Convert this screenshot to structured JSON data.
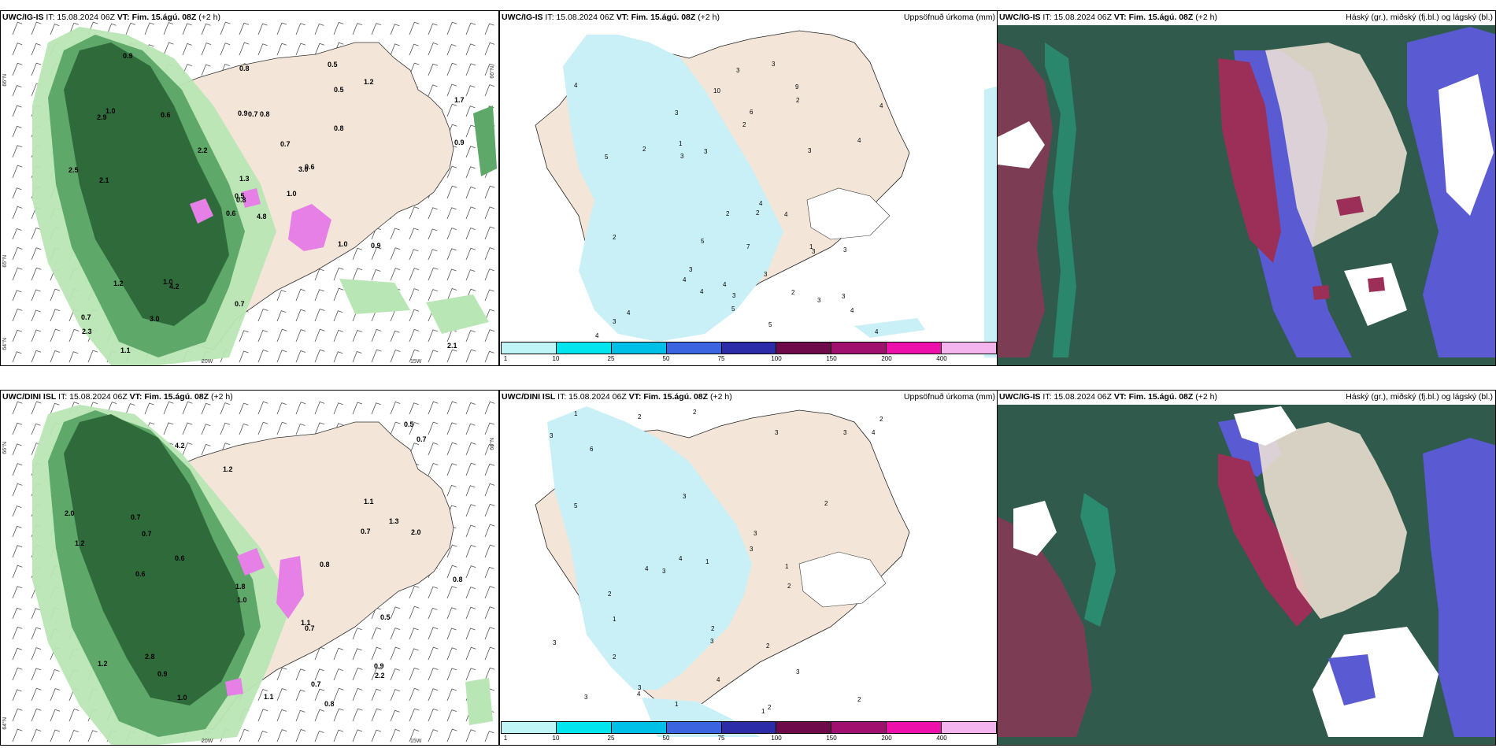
{
  "colors": {
    "land": "#f3e6d8",
    "sea_dark_green": "#2f5a4c",
    "precip_light": "#c9f0f6",
    "green_dark": "#2f6b3a",
    "green_mid": "#5ea86a",
    "green_light": "#b9e6b5",
    "magenta": "#e680e6",
    "blue_cloud": "#5a5ad2",
    "red_cloud": "#9c2f57",
    "teal_edge": "#28b48c"
  },
  "panels": {
    "top_left": {
      "model": "UWC/IG-IS",
      "it": "IT: 15.08.2024 06Z",
      "vt": "VT: Fim. 15.ágú. 08Z",
      "lead": "(+2 h)",
      "right_title": ""
    },
    "top_mid": {
      "model": "UWC/IG-IS",
      "it": "IT: 15.08.2024 06Z",
      "vt": "VT: Fim. 15.ágú. 08Z",
      "lead": "(+2 h)",
      "right_title": "Uppsöfnuð úrkoma (mm)"
    },
    "top_right": {
      "model": "UWC/IG-IS",
      "it": "IT: 15.08.2024 06Z",
      "vt": "VT: Fim. 15.ágú. 08Z",
      "lead": "(+2 h)",
      "right_title": "Háský (gr.), miðský (fj.bl.) og lágský (bl.)"
    },
    "bot_left": {
      "model": "UWC/DINI ISL",
      "it": "IT: 15.08.2024 06Z",
      "vt": "VT: Fim. 15.ágú. 08Z",
      "lead": "(+2 h)",
      "right_title": ""
    },
    "bot_mid": {
      "model": "UWC/DINI ISL",
      "it": "IT: 15.08.2024 06Z",
      "vt": "VT: Fim. 15.ágú. 08Z",
      "lead": "(+2 h)",
      "right_title": "Uppsöfnuð úrkoma (mm)"
    },
    "bot_right": {
      "model": "UWC/IG-IS",
      "it": "IT: 15.08.2024 06Z",
      "vt": "VT: Fim. 15.ágú. 08Z",
      "lead": "(+2 h)",
      "right_title": "Háský (gr.), miðský (fj.bl.) og lágský (bl.)"
    }
  },
  "colorbar": {
    "labels": [
      "1",
      "10",
      "25",
      "50",
      "75",
      "100",
      "150",
      "200",
      "400"
    ],
    "colors": [
      "#bff5f7",
      "#00e5ee",
      "#00c0e8",
      "#3a64e0",
      "#2c2ca8",
      "#6e0a4a",
      "#a0106e",
      "#ee10aa",
      "#f4b4ee"
    ]
  },
  "axis_labels": {
    "lat_66": "66°N",
    "lat_65": "65°N",
    "lat_64": "64°N",
    "lon_20": "20W",
    "lon_15": "15W"
  },
  "top_left_values": [
    "4.8",
    "2.9",
    "0.8",
    "0.7",
    "3.0",
    "4.2",
    "0.5",
    "0.8",
    "0.5",
    "1.0",
    "0.9",
    "2.1",
    "2.1",
    "1.7",
    "0.6",
    "0.8",
    "1.1",
    "0.9",
    "0.7",
    "1.2",
    "2.2",
    "2.3",
    "3.0",
    "0.7",
    "0.6",
    "0.9",
    "1.0",
    "0.8",
    "2.5",
    "1.0",
    "0.9",
    "0.5",
    "0.7",
    "1.3",
    "0.6",
    "1.2",
    "1.0"
  ],
  "bot_left_values": [
    "0.8",
    "4.2",
    "2.8",
    "0.7",
    "1.3",
    "0.7",
    "0.8",
    "0.6",
    "1.0",
    "0.9",
    "1.2",
    "2.0",
    "1.8",
    "1.1",
    "0.7",
    "0.5",
    "1.2",
    "0.7",
    "0.5",
    "2.0",
    "0.9",
    "0.7",
    "1.0",
    "2.2",
    "0.8",
    "1.1",
    "0.6",
    "0.7",
    "1.1",
    "1.2"
  ],
  "top_mid_values": [
    "3",
    "3",
    "4",
    "7",
    "10",
    "3",
    "3",
    "9",
    "3",
    "4",
    "4",
    "3",
    "4",
    "3",
    "2",
    "1",
    "1",
    "2",
    "2",
    "4",
    "4",
    "4",
    "5",
    "4",
    "3",
    "2",
    "3",
    "2",
    "4",
    "3",
    "4",
    "5",
    "6",
    "4",
    "2",
    "5",
    "3",
    "3",
    "5",
    "4",
    "2",
    "3",
    "3"
  ],
  "bot_mid_values": [
    "1",
    "1",
    "3",
    "3",
    "2",
    "6",
    "4",
    "2",
    "2",
    "3",
    "3",
    "4",
    "4",
    "3",
    "3",
    "3",
    "5",
    "4",
    "3",
    "3",
    "2",
    "2",
    "3",
    "3",
    "2",
    "2",
    "3",
    "1",
    "1",
    "2",
    "1",
    "2",
    "2",
    "4",
    "2",
    "1"
  ]
}
